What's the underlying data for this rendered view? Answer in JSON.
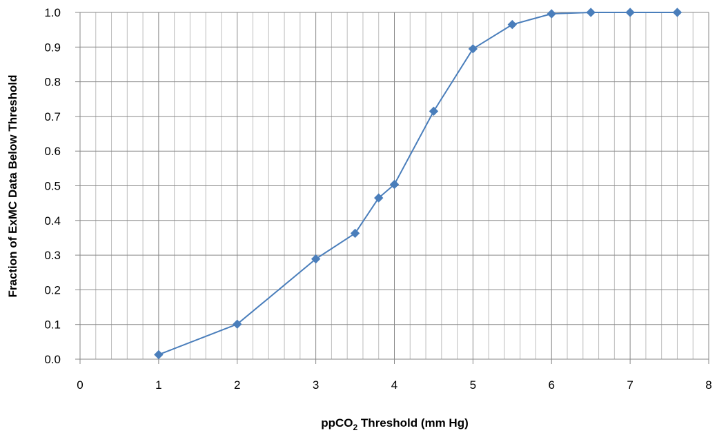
{
  "chart_data": {
    "type": "scatter",
    "title": "",
    "xlabel": {
      "prefix": "ppCO",
      "subscript": "2",
      "suffix": " Threshold (mm Hg)"
    },
    "ylabel": "Fraction of ExMC Data Below Threshold",
    "xlim": [
      0,
      8
    ],
    "ylim": [
      0.0,
      1.0
    ],
    "x_ticks": [
      "0",
      "1",
      "2",
      "3",
      "4",
      "5",
      "6",
      "7",
      "8"
    ],
    "y_ticks": [
      "0.0",
      "0.1",
      "0.2",
      "0.3",
      "0.4",
      "0.5",
      "0.6",
      "0.7",
      "0.8",
      "0.9",
      "1.0"
    ],
    "x_minor_step": 0.2,
    "grid": true,
    "legend": "none",
    "series": [
      {
        "marker": "diamond",
        "line": "straight",
        "color": "#4a7ebb",
        "x": [
          1,
          2,
          3,
          3.5,
          3.8,
          4,
          4.5,
          5,
          5.5,
          6,
          6.5,
          7,
          7.6
        ],
        "y": [
          0.013,
          0.101,
          0.289,
          0.363,
          0.465,
          0.504,
          0.715,
          0.895,
          0.965,
          0.996,
          1.0,
          1.0,
          1.0
        ]
      }
    ],
    "colors": {
      "grid": "#878787",
      "axis": "#878787",
      "series": "#4a7ebb"
    }
  }
}
